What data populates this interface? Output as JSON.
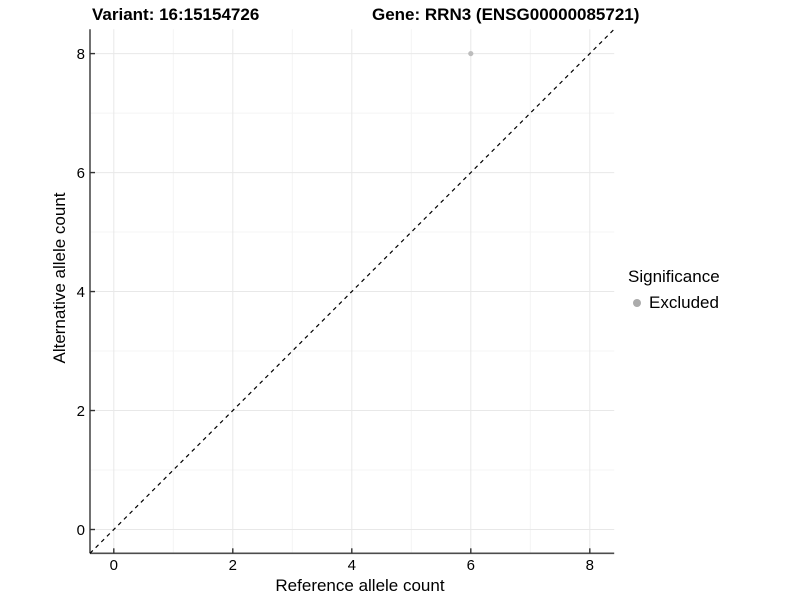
{
  "chart_data": {
    "type": "scatter",
    "title_left": "Variant: 16:15154726",
    "title_right": "Gene: RRN3 (ENSG00000085721)",
    "xlabel": "Reference allele count",
    "ylabel": "Alternative allele count",
    "xlim": [
      -0.4,
      8.41
    ],
    "ylim": [
      -0.4,
      8.41
    ],
    "x_ticks": [
      0,
      2,
      4,
      6,
      8
    ],
    "y_ticks": [
      0,
      2,
      4,
      6,
      8
    ],
    "x_minor_ticks": [
      1,
      3,
      5,
      7
    ],
    "y_minor_ticks": [
      1,
      3,
      5,
      7
    ],
    "grid": true,
    "series": [
      {
        "name": "Excluded",
        "color": "#bdbdbd",
        "points": [
          {
            "x": 6,
            "y": 8
          }
        ]
      }
    ],
    "reference_line": {
      "kind": "identity",
      "style": "dashed",
      "color": "#000000",
      "from": [
        -0.4,
        -0.4
      ],
      "to": [
        8.41,
        8.41
      ]
    },
    "legend": {
      "title": "Significance",
      "position": "right",
      "entries": [
        {
          "label": "Excluded",
          "color": "#ababab"
        }
      ]
    }
  },
  "colors": {
    "background": "#ffffff",
    "grid_major": "#e8e8e8",
    "grid_minor": "#f4f4f4",
    "axis_line": "#4d4d4d",
    "tick_mark": "#333333",
    "tick_label": "#000000",
    "dashed_line": "#000000"
  }
}
